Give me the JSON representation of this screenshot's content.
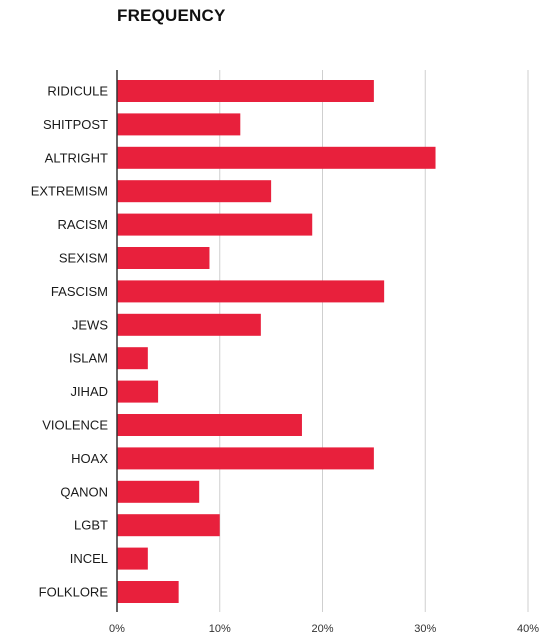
{
  "chart_data": {
    "type": "bar",
    "orientation": "horizontal",
    "title": "FREQUENCY",
    "xlabel": "",
    "ylabel": "",
    "categories": [
      "RIDICULE",
      "SHITPOST",
      "ALTRIGHT",
      "EXTREMISM",
      "RACISM",
      "SEXISM",
      "FASCISM",
      "JEWS",
      "ISLAM",
      "JIHAD",
      "VIOLENCE",
      "HOAX",
      "QANON",
      "LGBT",
      "INCEL",
      "FOLKLORE"
    ],
    "values": [
      25,
      12,
      31,
      15,
      19,
      9,
      26,
      14,
      3,
      4,
      18,
      25,
      8,
      10,
      3,
      6
    ],
    "xlim": [
      0,
      40
    ],
    "x_ticks": [
      0,
      10,
      20,
      30,
      40
    ],
    "x_tick_labels": [
      "0%",
      "10%",
      "20%",
      "30%",
      "40%"
    ],
    "grid": "vertical",
    "legend": "none",
    "bar_color": "#e8203c"
  }
}
